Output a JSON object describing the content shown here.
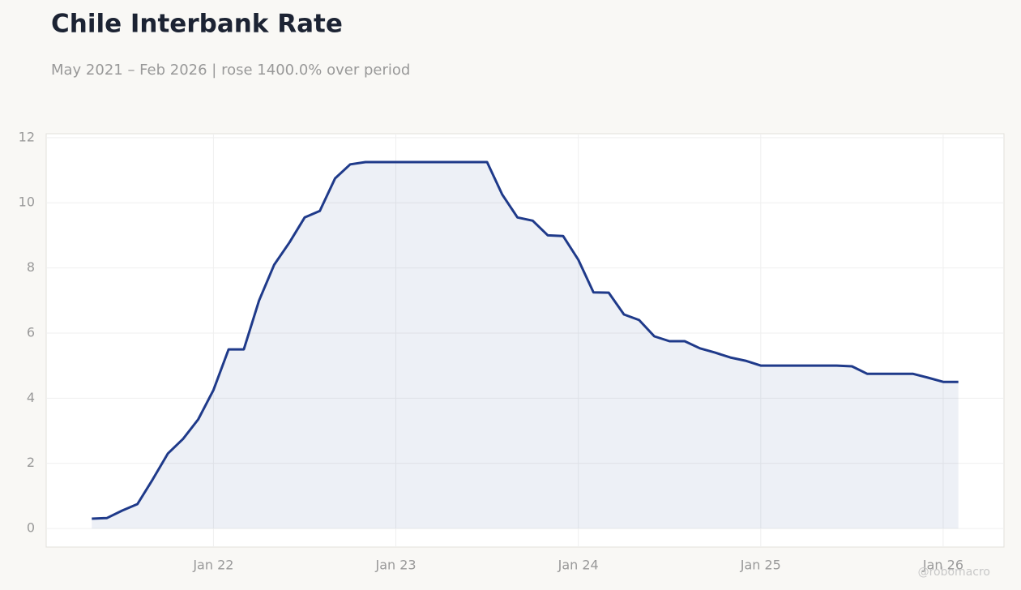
{
  "chart_data": {
    "type": "line",
    "title": "Chile Interbank Rate",
    "subtitle": "May 2021 – Feb 2026 | rose 1400.0% over period",
    "watermark": "@robomacro",
    "x": [
      "2021-05",
      "2021-06",
      "2021-07",
      "2021-08",
      "2021-09",
      "2021-10",
      "2021-11",
      "2021-12",
      "2022-01",
      "2022-02",
      "2022-03",
      "2022-04",
      "2022-05",
      "2022-06",
      "2022-07",
      "2022-08",
      "2022-09",
      "2022-10",
      "2022-11",
      "2022-12",
      "2023-01",
      "2023-02",
      "2023-03",
      "2023-04",
      "2023-05",
      "2023-06",
      "2023-07",
      "2023-08",
      "2023-09",
      "2023-10",
      "2023-11",
      "2023-12",
      "2024-01",
      "2024-02",
      "2024-03",
      "2024-04",
      "2024-05",
      "2024-06",
      "2024-07",
      "2024-08",
      "2024-09",
      "2024-10",
      "2024-11",
      "2024-12",
      "2025-01",
      "2025-02",
      "2025-03",
      "2025-04",
      "2025-05",
      "2025-06",
      "2025-07",
      "2025-08",
      "2025-09",
      "2025-10",
      "2025-11",
      "2025-12",
      "2026-01",
      "2026-02"
    ],
    "values": [
      0.3,
      0.32,
      0.55,
      0.75,
      1.5,
      2.3,
      2.75,
      3.35,
      4.25,
      5.5,
      5.5,
      7.0,
      8.1,
      8.78,
      9.55,
      9.75,
      10.75,
      11.18,
      11.25,
      11.25,
      11.25,
      11.25,
      11.25,
      11.25,
      11.25,
      11.25,
      11.25,
      10.25,
      9.55,
      9.45,
      9.0,
      8.98,
      8.25,
      7.25,
      7.24,
      6.57,
      6.4,
      5.9,
      5.75,
      5.75,
      5.53,
      5.4,
      5.25,
      5.15,
      5.0,
      5.0,
      5.0,
      5.0,
      5.0,
      5.0,
      4.98,
      4.75,
      4.75,
      4.75,
      4.75,
      4.63,
      4.5,
      4.5
    ],
    "color": "#1f3a8a",
    "fill": true,
    "grid": true,
    "xlim": [
      "2021-02",
      "2026-05"
    ],
    "xticks": [
      {
        "value": "2022-01",
        "label": "Jan 22"
      },
      {
        "value": "2023-01",
        "label": "Jan 23"
      },
      {
        "value": "2024-01",
        "label": "Jan 24"
      },
      {
        "value": "2025-01",
        "label": "Jan 25"
      },
      {
        "value": "2026-01",
        "label": "Jan 26"
      }
    ],
    "ylim": [
      -0.57,
      12.12
    ],
    "yticks": [
      0,
      2,
      4,
      6,
      8,
      10,
      12
    ]
  }
}
